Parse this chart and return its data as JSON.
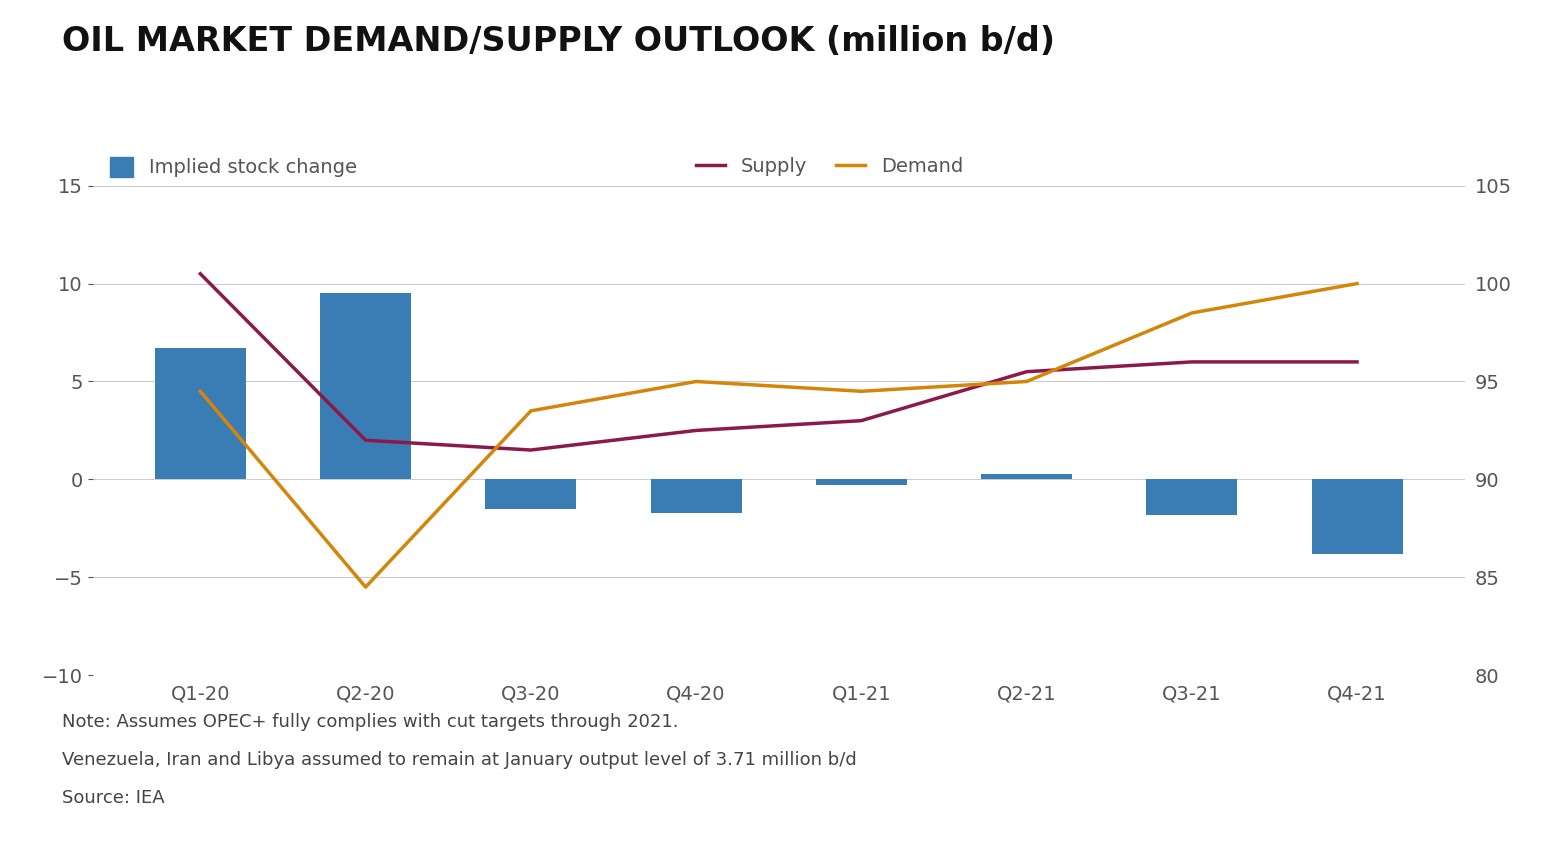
{
  "title": "OIL MARKET DEMAND/SUPPLY OUTLOOK (million b/d)",
  "categories": [
    "Q1-20",
    "Q2-20",
    "Q3-20",
    "Q4-20",
    "Q1-21",
    "Q2-21",
    "Q3-21",
    "Q4-21"
  ],
  "bar_values": [
    6.7,
    9.5,
    -1.5,
    -1.7,
    -0.3,
    0.3,
    -1.8,
    -3.8
  ],
  "supply_values": [
    100.5,
    92.0,
    91.5,
    92.5,
    93.0,
    95.5,
    96.0,
    96.0
  ],
  "demand_values": [
    94.5,
    84.5,
    93.5,
    95.0,
    94.5,
    95.0,
    98.5,
    100.0
  ],
  "bar_color": "#3A7DB5",
  "supply_color": "#8B1A4A",
  "demand_color": "#D4860B",
  "left_ylim": [
    -10,
    15
  ],
  "right_ylim": [
    80,
    105
  ],
  "left_yticks": [
    -10,
    -5,
    0,
    5,
    10,
    15
  ],
  "right_yticks": [
    80,
    85,
    90,
    95,
    100,
    105
  ],
  "note_line1": "Note: Assumes OPEC+ fully complies with cut targets through 2021.",
  "note_line2": "Venezuela, Iran and Libya assumed to remain at January output level of 3.71 million b/d",
  "note_line3": "Source: IEA",
  "bg_color": "#FFFFFF",
  "grid_color": "#CCCCCC",
  "title_fontsize": 24,
  "tick_fontsize": 14,
  "note_fontsize": 13,
  "legend_fontsize": 14,
  "axis_label_color": "#555555"
}
